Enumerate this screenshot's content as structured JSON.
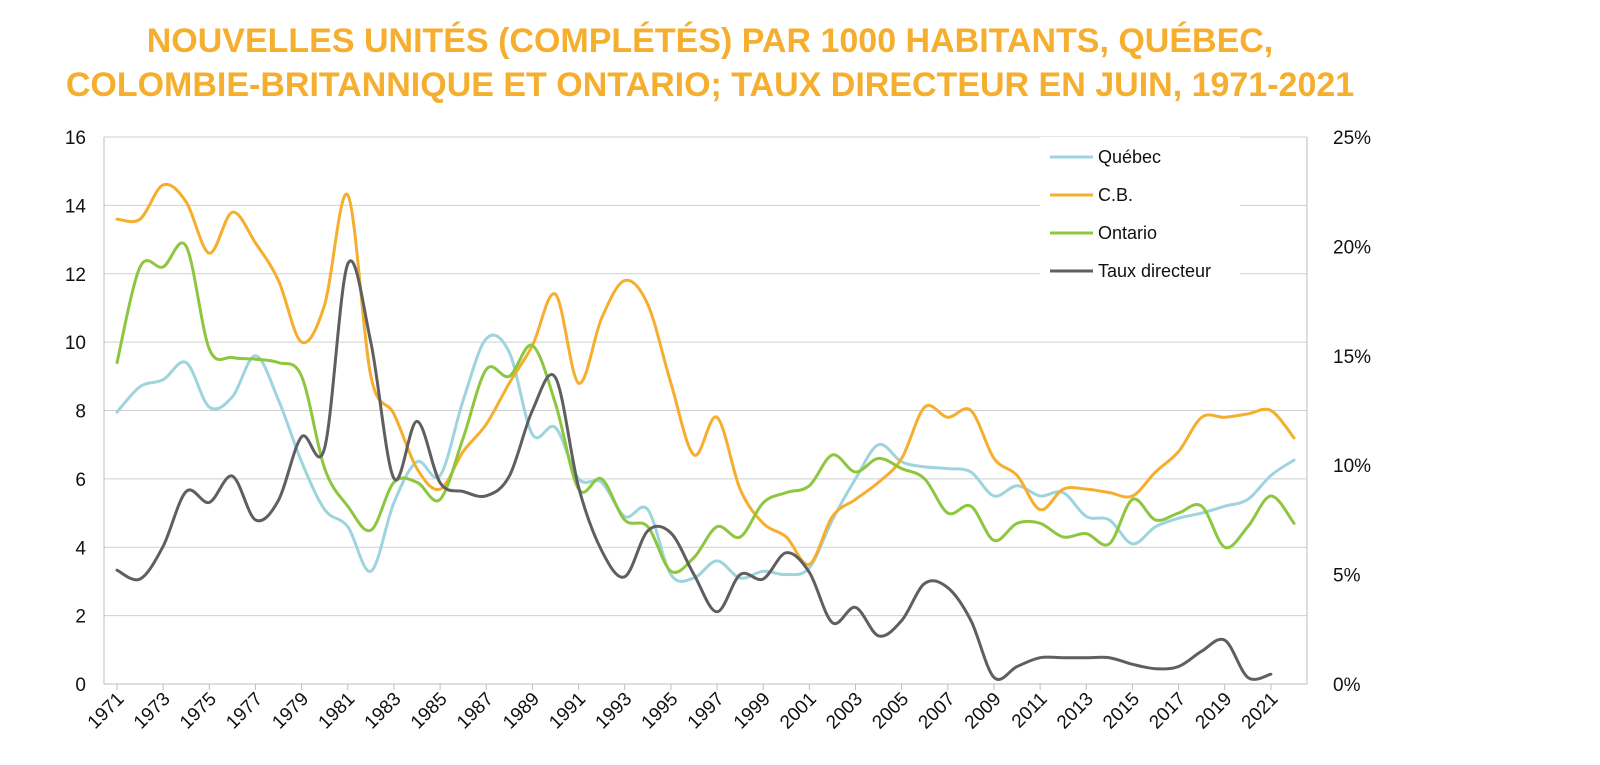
{
  "chart_data": {
    "type": "line",
    "title_line1": "NOUVELLES UNITÉS (COMPLÉTÉS) PAR 1000 HABITANTS, QUÉBEC,",
    "title_line2": "COLOMBIE-BRITANNIQUE ET ONTARIO; TAUX DIRECTEUR EN JUIN, 1971-2021",
    "x": [
      1971,
      1972,
      1973,
      1974,
      1975,
      1976,
      1977,
      1978,
      1979,
      1980,
      1981,
      1982,
      1983,
      1984,
      1985,
      1986,
      1987,
      1988,
      1989,
      1990,
      1991,
      1992,
      1993,
      1994,
      1995,
      1996,
      1997,
      1998,
      1999,
      2000,
      2001,
      2002,
      2003,
      2004,
      2005,
      2006,
      2007,
      2008,
      2009,
      2010,
      2011,
      2012,
      2013,
      2014,
      2015,
      2016,
      2017,
      2018,
      2019,
      2020,
      2021,
      2022
    ],
    "x_tick_labels": [
      "1971",
      "1973",
      "1975",
      "1977",
      "1979",
      "1981",
      "1983",
      "1985",
      "1987",
      "1989",
      "1991",
      "1993",
      "1995",
      "1997",
      "1999",
      "2001",
      "2003",
      "2005",
      "2007",
      "2009",
      "2011",
      "2013",
      "2015",
      "2017",
      "2019",
      "2021"
    ],
    "y_left_ticks": [
      "0",
      "2",
      "4",
      "6",
      "8",
      "10",
      "12",
      "14",
      "16"
    ],
    "y_left_lim": [
      0,
      16
    ],
    "y_right_ticks": [
      "0%",
      "5%",
      "10%",
      "15%",
      "20%",
      "25%"
    ],
    "y_right_lim": [
      0,
      25
    ],
    "grid": true,
    "legend_position": "top-right",
    "series": [
      {
        "name": "Québec",
        "axis": "left",
        "color": "#9ED4DD",
        "values": [
          7.95,
          8.7,
          8.9,
          9.4,
          8.1,
          8.4,
          9.6,
          8.3,
          6.5,
          5.1,
          4.6,
          3.3,
          5.3,
          6.5,
          6.1,
          8.3,
          10.1,
          9.7,
          7.3,
          7.5,
          6.0,
          5.9,
          4.9,
          5.1,
          3.2,
          3.1,
          3.6,
          3.1,
          3.3,
          3.2,
          3.4,
          4.8,
          6.0,
          7.0,
          6.5,
          6.35,
          6.3,
          6.2,
          5.5,
          5.8,
          5.5,
          5.6,
          4.9,
          4.8,
          4.1,
          4.6,
          4.85,
          5.0,
          5.2,
          5.4,
          6.1,
          6.55
        ]
      },
      {
        "name": "C.B.",
        "axis": "left",
        "color": "#F5AE2D",
        "values": [
          13.6,
          13.6,
          14.6,
          14.1,
          12.6,
          13.8,
          12.9,
          11.8,
          10.0,
          11.1,
          14.3,
          9.0,
          7.9,
          6.3,
          5.7,
          6.8,
          7.6,
          8.8,
          9.9,
          11.4,
          8.8,
          10.7,
          11.8,
          11.1,
          8.8,
          6.7,
          7.8,
          5.7,
          4.7,
          4.3,
          3.5,
          4.9,
          5.4,
          5.9,
          6.6,
          8.1,
          7.8,
          8.0,
          6.6,
          6.1,
          5.1,
          5.7,
          5.7,
          5.6,
          5.5,
          6.2,
          6.8,
          7.8,
          7.8,
          7.9,
          8.0,
          7.2
        ]
      },
      {
        "name": "Ontario",
        "axis": "left",
        "color": "#8DC63F",
        "values": [
          9.4,
          12.2,
          12.2,
          12.8,
          9.8,
          9.55,
          9.5,
          9.4,
          9.0,
          6.3,
          5.2,
          4.5,
          5.9,
          5.9,
          5.4,
          7.2,
          9.2,
          9.0,
          9.9,
          8.2,
          5.7,
          6.0,
          4.8,
          4.6,
          3.3,
          3.7,
          4.6,
          4.3,
          5.3,
          5.6,
          5.8,
          6.7,
          6.2,
          6.6,
          6.3,
          6.0,
          5.0,
          5.2,
          4.2,
          4.7,
          4.7,
          4.3,
          4.4,
          4.1,
          5.4,
          4.8,
          5.0,
          5.2,
          4.0,
          4.6,
          5.5,
          4.7
        ]
      },
      {
        "name": "Taux directeur",
        "axis": "right",
        "color": "#5F5F61",
        "values": [
          5.2,
          4.8,
          6.3,
          8.8,
          8.3,
          9.5,
          7.5,
          8.4,
          11.3,
          10.8,
          19.2,
          15.6,
          9.4,
          12.0,
          9.2,
          8.8,
          8.6,
          9.5,
          12.5,
          14.0,
          9.0,
          6.1,
          4.9,
          7.0,
          6.9,
          5.0,
          3.3,
          5.0,
          4.8,
          6.0,
          5.1,
          2.8,
          3.5,
          2.2,
          2.9,
          4.6,
          4.4,
          2.9,
          0.3,
          0.8,
          1.2,
          1.2,
          1.2,
          1.2,
          0.9,
          0.7,
          0.8,
          1.5,
          2.0,
          0.3,
          0.45,
          null
        ]
      }
    ]
  }
}
